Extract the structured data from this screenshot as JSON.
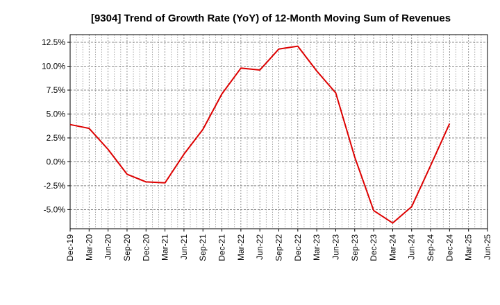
{
  "chart_data": {
    "type": "line",
    "title": "[9304]  Trend of Growth Rate (YoY) of 12-Month Moving Sum of Revenues",
    "xlabel": "",
    "ylabel": "",
    "x_tick_labels": [
      "Dec-19",
      "Mar-20",
      "Jun-20",
      "Sep-20",
      "Dec-20",
      "Mar-21",
      "Jun-21",
      "Sep-21",
      "Dec-21",
      "Mar-22",
      "Jun-22",
      "Sep-22",
      "Dec-22",
      "Mar-23",
      "Jun-23",
      "Sep-23",
      "Dec-23",
      "Mar-24",
      "Jun-24",
      "Sep-24",
      "Dec-24",
      "Mar-25",
      "Jun-25"
    ],
    "y_ticks": [
      12.5,
      10.0,
      7.5,
      5.0,
      2.5,
      0.0,
      -2.5,
      -5.0
    ],
    "y_tick_labels": [
      "12.5%",
      "10.0%",
      "7.5%",
      "5.0%",
      "2.5%",
      "0.0%",
      "-2.5%",
      "-5.0%"
    ],
    "ylim": [
      -7.0,
      13.3
    ],
    "grid": true,
    "line_color": "#dd0000",
    "series": [
      {
        "x": [
          "Dec-19",
          "Mar-20",
          "Jun-20",
          "Sep-20",
          "Dec-20",
          "Mar-21",
          "Jun-21",
          "Sep-21",
          "Dec-21",
          "Mar-22",
          "Jun-22",
          "Sep-22",
          "Dec-22",
          "Mar-23",
          "Jun-23",
          "Sep-23",
          "Dec-23",
          "Mar-24",
          "Jun-24",
          "Sep-24",
          "Dec-24"
        ],
        "values": [
          3.9,
          3.5,
          1.3,
          -1.3,
          -2.1,
          -2.2,
          0.8,
          3.4,
          7.1,
          9.8,
          9.6,
          11.8,
          12.1,
          9.5,
          7.2,
          0.5,
          -5.1,
          -6.4,
          -4.7,
          -0.4,
          4.0
        ]
      }
    ]
  }
}
